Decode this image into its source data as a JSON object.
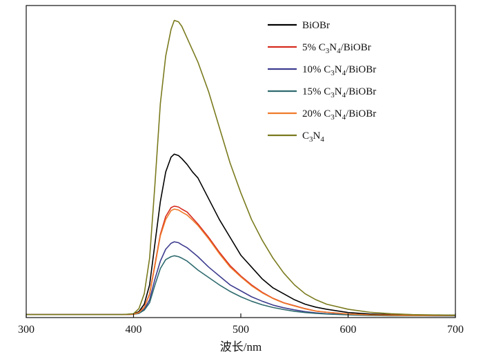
{
  "chart_data": {
    "type": "line",
    "xlabel": "波长/nm",
    "ylabel": "",
    "xlim": [
      300,
      700
    ],
    "ylim": [
      0,
      1.05
    ],
    "xticks": [
      "300",
      "400",
      "500",
      "600",
      "700"
    ],
    "grid": false,
    "legend_placement": "top-right",
    "series": [
      {
        "name": "BiOBr",
        "legend": {
          "prefix": "",
          "sub1": "",
          "mid": "BiOBr",
          "sub2": "",
          "suffix": ""
        },
        "color": "#000000",
        "x": [
          300,
          390,
          400,
          405,
          410,
          415,
          420,
          425,
          430,
          435,
          438,
          442,
          445,
          450,
          455,
          460,
          470,
          480,
          490,
          500,
          510,
          520,
          530,
          540,
          550,
          560,
          570,
          580,
          600,
          620,
          640,
          660,
          680,
          700
        ],
        "y": [
          0.01,
          0.01,
          0.012,
          0.02,
          0.045,
          0.11,
          0.25,
          0.39,
          0.49,
          0.54,
          0.55,
          0.545,
          0.535,
          0.515,
          0.49,
          0.47,
          0.4,
          0.33,
          0.27,
          0.21,
          0.17,
          0.13,
          0.1,
          0.08,
          0.06,
          0.045,
          0.035,
          0.028,
          0.017,
          0.012,
          0.01,
          0.009,
          0.008,
          0.008
        ]
      },
      {
        "name": "5% C3N4/BiOBr",
        "legend": {
          "prefix": "5%  C",
          "sub1": "3",
          "mid": "N",
          "sub2": "4",
          "suffix": "/BiOBr"
        },
        "color": "#d62b1f",
        "x": [
          300,
          390,
          400,
          405,
          410,
          415,
          420,
          425,
          430,
          435,
          438,
          442,
          445,
          450,
          455,
          460,
          470,
          480,
          490,
          500,
          510,
          520,
          530,
          540,
          550,
          560,
          570,
          580,
          600,
          620,
          640,
          660,
          680,
          700
        ],
        "y": [
          0.01,
          0.01,
          0.011,
          0.017,
          0.035,
          0.08,
          0.18,
          0.28,
          0.34,
          0.37,
          0.375,
          0.372,
          0.365,
          0.355,
          0.335,
          0.315,
          0.27,
          0.22,
          0.175,
          0.14,
          0.11,
          0.085,
          0.065,
          0.05,
          0.04,
          0.03,
          0.022,
          0.018,
          0.012,
          0.009,
          0.008,
          0.007,
          0.007,
          0.007
        ]
      },
      {
        "name": "10% C3N4/BiOBr",
        "legend": {
          "prefix": "10% C",
          "sub1": "3",
          "mid": "N",
          "sub2": "4",
          "suffix": "/BiOBr"
        },
        "color": "#3d3c8f",
        "x": [
          300,
          390,
          400,
          405,
          410,
          415,
          420,
          425,
          430,
          435,
          438,
          442,
          445,
          450,
          455,
          460,
          470,
          480,
          490,
          500,
          510,
          520,
          530,
          540,
          550,
          560,
          570,
          580,
          600,
          620,
          640,
          660,
          680,
          700
        ],
        "y": [
          0.01,
          0.01,
          0.011,
          0.015,
          0.028,
          0.06,
          0.13,
          0.19,
          0.23,
          0.25,
          0.255,
          0.252,
          0.245,
          0.235,
          0.22,
          0.205,
          0.17,
          0.14,
          0.11,
          0.09,
          0.07,
          0.055,
          0.042,
          0.033,
          0.026,
          0.02,
          0.016,
          0.013,
          0.01,
          0.008,
          0.007,
          0.007,
          0.006,
          0.006
        ]
      },
      {
        "name": "15% C3N4/BiOBr",
        "legend": {
          "prefix": "15% C",
          "sub1": "3",
          "mid": "N",
          "sub2": "4",
          "suffix": "/BiOBr"
        },
        "color": "#2e6a6e",
        "x": [
          300,
          390,
          400,
          405,
          410,
          415,
          420,
          425,
          430,
          435,
          438,
          442,
          445,
          450,
          455,
          460,
          470,
          480,
          490,
          500,
          510,
          520,
          530,
          540,
          550,
          560,
          570,
          580,
          600,
          620,
          640,
          660,
          680,
          700
        ],
        "y": [
          0.01,
          0.01,
          0.011,
          0.014,
          0.025,
          0.05,
          0.11,
          0.165,
          0.195,
          0.205,
          0.208,
          0.205,
          0.2,
          0.19,
          0.175,
          0.16,
          0.135,
          0.11,
          0.088,
          0.07,
          0.055,
          0.043,
          0.034,
          0.027,
          0.021,
          0.017,
          0.014,
          0.012,
          0.009,
          0.007,
          0.006,
          0.006,
          0.006,
          0.006
        ]
      },
      {
        "name": "20% C3N4/BiOBr",
        "legend": {
          "prefix": "20% C",
          "sub1": "3",
          "mid": "N",
          "sub2": "4",
          "suffix": "/BiOBr"
        },
        "color": "#f07a2a",
        "x": [
          300,
          390,
          400,
          405,
          410,
          415,
          420,
          425,
          430,
          435,
          438,
          442,
          445,
          450,
          455,
          460,
          470,
          480,
          490,
          500,
          510,
          520,
          530,
          540,
          550,
          560,
          570,
          580,
          600,
          620,
          640,
          660,
          680,
          700
        ],
        "y": [
          0.01,
          0.01,
          0.011,
          0.017,
          0.034,
          0.078,
          0.175,
          0.275,
          0.33,
          0.36,
          0.365,
          0.362,
          0.355,
          0.345,
          0.328,
          0.31,
          0.265,
          0.215,
          0.17,
          0.137,
          0.107,
          0.083,
          0.064,
          0.049,
          0.039,
          0.029,
          0.022,
          0.018,
          0.012,
          0.009,
          0.008,
          0.007,
          0.007,
          0.007
        ]
      },
      {
        "name": "C3N4",
        "legend": {
          "prefix": "C",
          "sub1": "3",
          "mid": "N",
          "sub2": "4",
          "suffix": ""
        },
        "color": "#7a7a1e",
        "x": [
          300,
          390,
          400,
          405,
          410,
          415,
          420,
          425,
          430,
          435,
          438,
          442,
          445,
          450,
          455,
          460,
          470,
          480,
          490,
          500,
          510,
          520,
          530,
          540,
          550,
          560,
          570,
          580,
          600,
          620,
          640,
          660,
          680,
          700
        ],
        "y": [
          0.01,
          0.01,
          0.013,
          0.03,
          0.08,
          0.2,
          0.45,
          0.72,
          0.88,
          0.97,
          1.0,
          0.995,
          0.98,
          0.94,
          0.9,
          0.86,
          0.76,
          0.64,
          0.52,
          0.42,
          0.33,
          0.26,
          0.2,
          0.15,
          0.11,
          0.08,
          0.06,
          0.045,
          0.028,
          0.018,
          0.013,
          0.01,
          0.009,
          0.008
        ]
      }
    ]
  }
}
